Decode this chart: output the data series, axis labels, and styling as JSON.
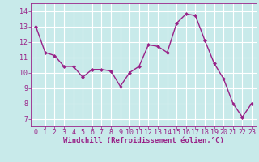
{
  "x": [
    0,
    1,
    2,
    3,
    4,
    5,
    6,
    7,
    8,
    9,
    10,
    11,
    12,
    13,
    14,
    15,
    16,
    17,
    18,
    19,
    20,
    21,
    22,
    23
  ],
  "y": [
    13.0,
    11.3,
    11.1,
    10.4,
    10.4,
    9.7,
    10.2,
    10.2,
    10.1,
    9.1,
    10.0,
    10.4,
    11.8,
    11.7,
    11.3,
    13.2,
    13.8,
    13.7,
    12.1,
    10.6,
    9.6,
    8.0,
    7.1,
    8.0
  ],
  "line_color": "#992288",
  "marker": "D",
  "markersize": 2.0,
  "bg_color": "#c8eaea",
  "grid_color": "#ffffff",
  "xlabel": "Windchill (Refroidissement éolien,°C)",
  "xlabel_color": "#992288",
  "tick_color": "#992288",
  "xlim": [
    -0.5,
    23.5
  ],
  "ylim": [
    6.5,
    14.5
  ],
  "yticks": [
    7,
    8,
    9,
    10,
    11,
    12,
    13,
    14
  ],
  "xticks": [
    0,
    1,
    2,
    3,
    4,
    5,
    6,
    7,
    8,
    9,
    10,
    11,
    12,
    13,
    14,
    15,
    16,
    17,
    18,
    19,
    20,
    21,
    22,
    23
  ],
  "linewidth": 1.0,
  "tick_fontsize": 6.0,
  "xlabel_fontsize": 6.5
}
